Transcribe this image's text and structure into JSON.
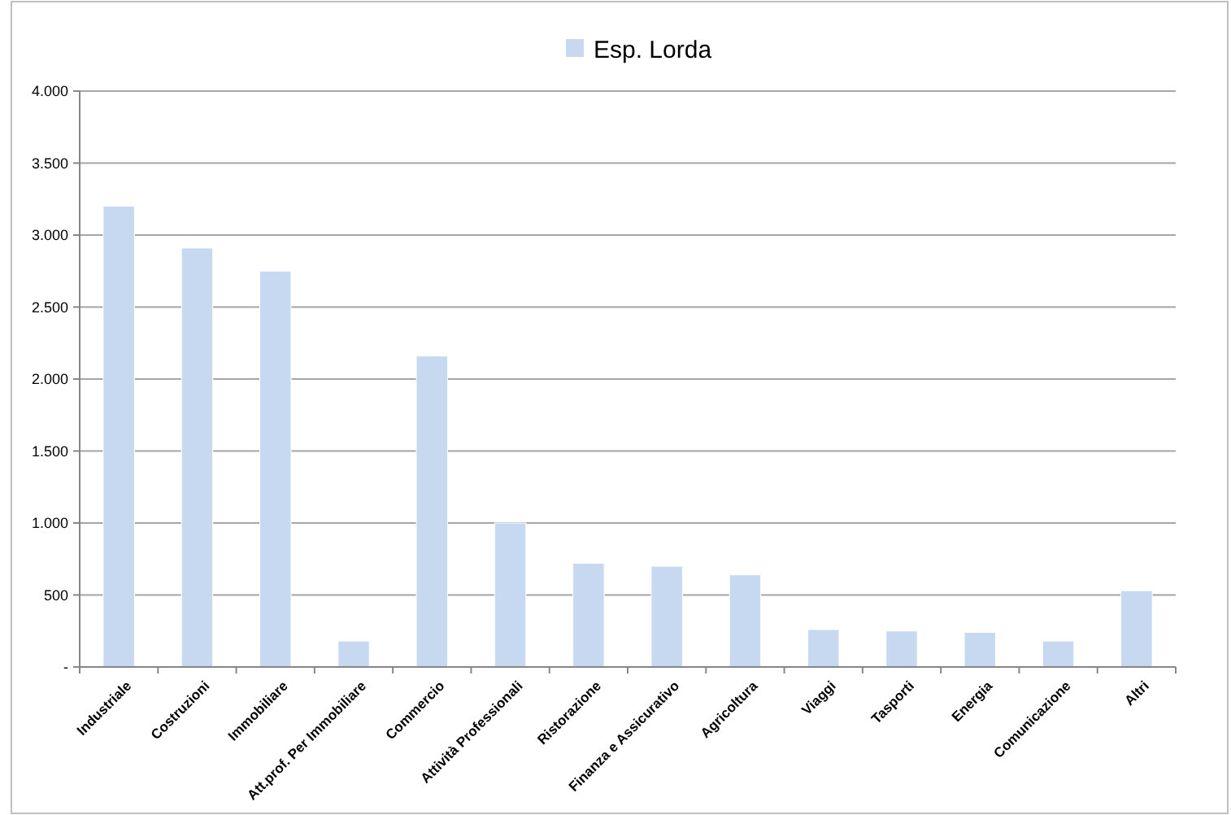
{
  "chart_data": {
    "type": "bar",
    "categories": [
      "Industriale",
      "Costruzioni",
      "Immobiliare",
      "Att.prof. Per Immobiliare",
      "Commercio",
      "Attività Professionali",
      "Ristorazione",
      "Finanza e Assicurativo",
      "Agricoltura",
      "Viaggi",
      "Tasporti",
      "Energia",
      "Comunicazione",
      "Altri"
    ],
    "series": [
      {
        "name": "Esp. Lorda",
        "color": "#c6d9f1",
        "values": [
          3200,
          2910,
          2750,
          180,
          2160,
          1000,
          720,
          700,
          640,
          260,
          250,
          240,
          180,
          530
        ]
      }
    ],
    "ylim": [
      0,
      4000
    ],
    "yticks": [
      {
        "value": 0,
        "label": "-"
      },
      {
        "value": 500,
        "label": "500"
      },
      {
        "value": 1000,
        "label": "1.000"
      },
      {
        "value": 1500,
        "label": "1.500"
      },
      {
        "value": 2000,
        "label": "2.000"
      },
      {
        "value": 2500,
        "label": "2.500"
      },
      {
        "value": 3000,
        "label": "3.000"
      },
      {
        "value": 3500,
        "label": "3.500"
      },
      {
        "value": 4000,
        "label": "4.000"
      }
    ],
    "grid": "y",
    "legend": "top"
  }
}
